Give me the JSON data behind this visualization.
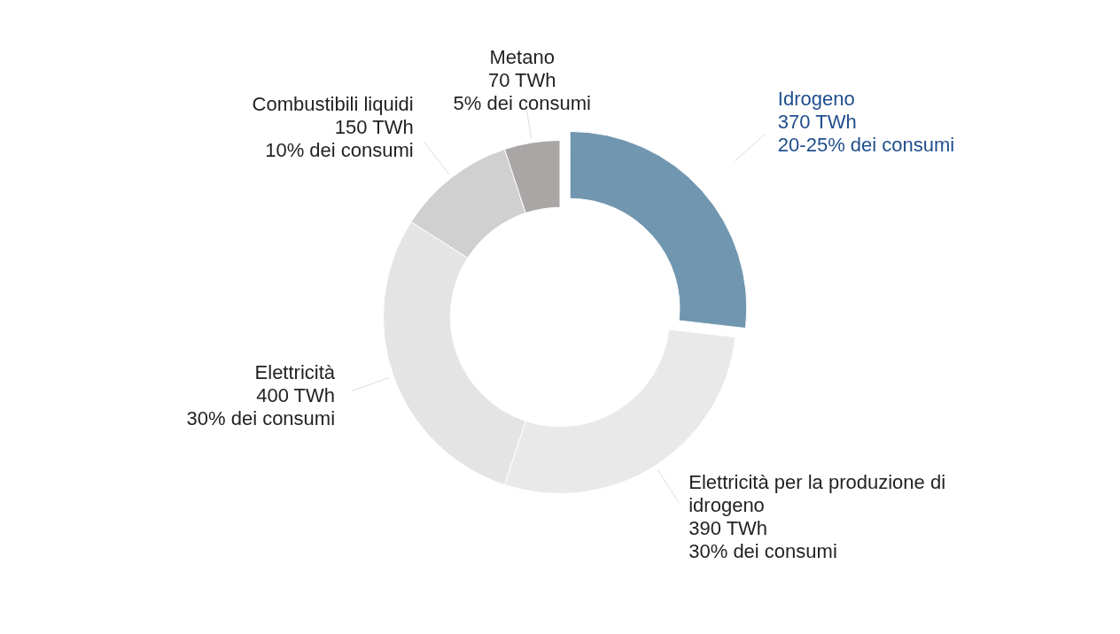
{
  "chart_data": {
    "type": "donut",
    "categories": [
      "Idrogeno",
      "Elettricità per la produzione di idrogeno",
      "Elettricità",
      "Combustibili liquidi",
      "Metano"
    ],
    "values": [
      370,
      390,
      400,
      150,
      70
    ],
    "colors": [
      "#7096b0",
      "#e9e9e9",
      "#e4e4e4",
      "#d0d0d0",
      "#aba6a6"
    ],
    "value_labels": [
      "370 TWh",
      "390 TWh",
      "400 TWh",
      "150 TWh",
      "70 TWh"
    ],
    "annotations": [
      {
        "text": "20-25% dei consumi",
        "x": "Idrogeno"
      },
      {
        "text": "30% dei consumi",
        "x": "Elettricità per la produzione di idrogeno"
      },
      {
        "text": "30% dei consumi",
        "x": "Elettricità"
      },
      {
        "text": "10% dei consumi",
        "x": "Combustibili liquidi"
      },
      {
        "text": "5% dei consumi",
        "x": "Metano"
      }
    ],
    "legend": false
  }
}
